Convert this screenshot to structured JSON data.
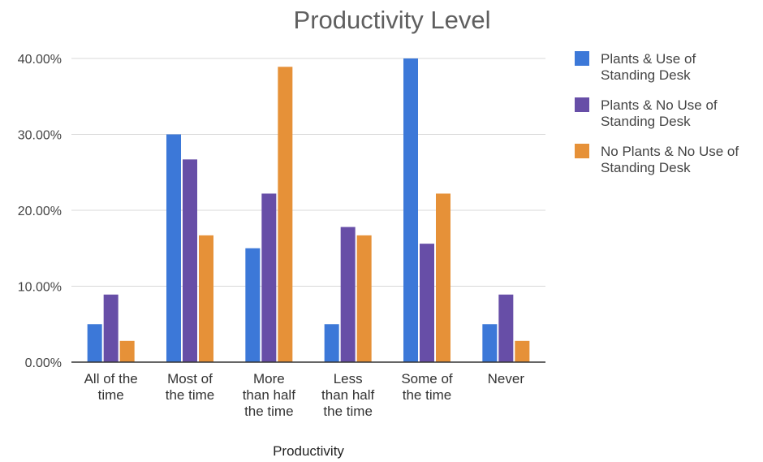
{
  "chart_data": {
    "type": "bar",
    "title": "Productivity Level",
    "xlabel": "Productivity",
    "ylabel": "",
    "ylim": [
      0,
      40
    ],
    "yticks": [
      "0.00%",
      "10.00%",
      "20.00%",
      "30.00%",
      "40.00%"
    ],
    "categories": [
      [
        "All of the",
        "time"
      ],
      [
        "Most of",
        "the time"
      ],
      [
        "More",
        "than half",
        "the time"
      ],
      [
        "Less",
        "than half",
        "the time"
      ],
      [
        "Some of",
        "the time"
      ],
      [
        "Never"
      ]
    ],
    "series": [
      {
        "name": [
          "Plants & Use of",
          "Standing Desk"
        ],
        "color": "#3c78d8",
        "values": [
          5,
          30,
          15,
          5,
          40,
          5
        ]
      },
      {
        "name": [
          "Plants & No Use of",
          "Standing Desk"
        ],
        "color": "#674ea7",
        "values": [
          8.9,
          26.7,
          22.2,
          17.8,
          15.6,
          8.9
        ]
      },
      {
        "name": [
          "No Plants & No Use of",
          "Standing Desk"
        ],
        "color": "#e69138",
        "values": [
          2.8,
          16.7,
          38.9,
          16.7,
          22.2,
          2.8
        ]
      }
    ],
    "grid": true,
    "legend": "right"
  }
}
